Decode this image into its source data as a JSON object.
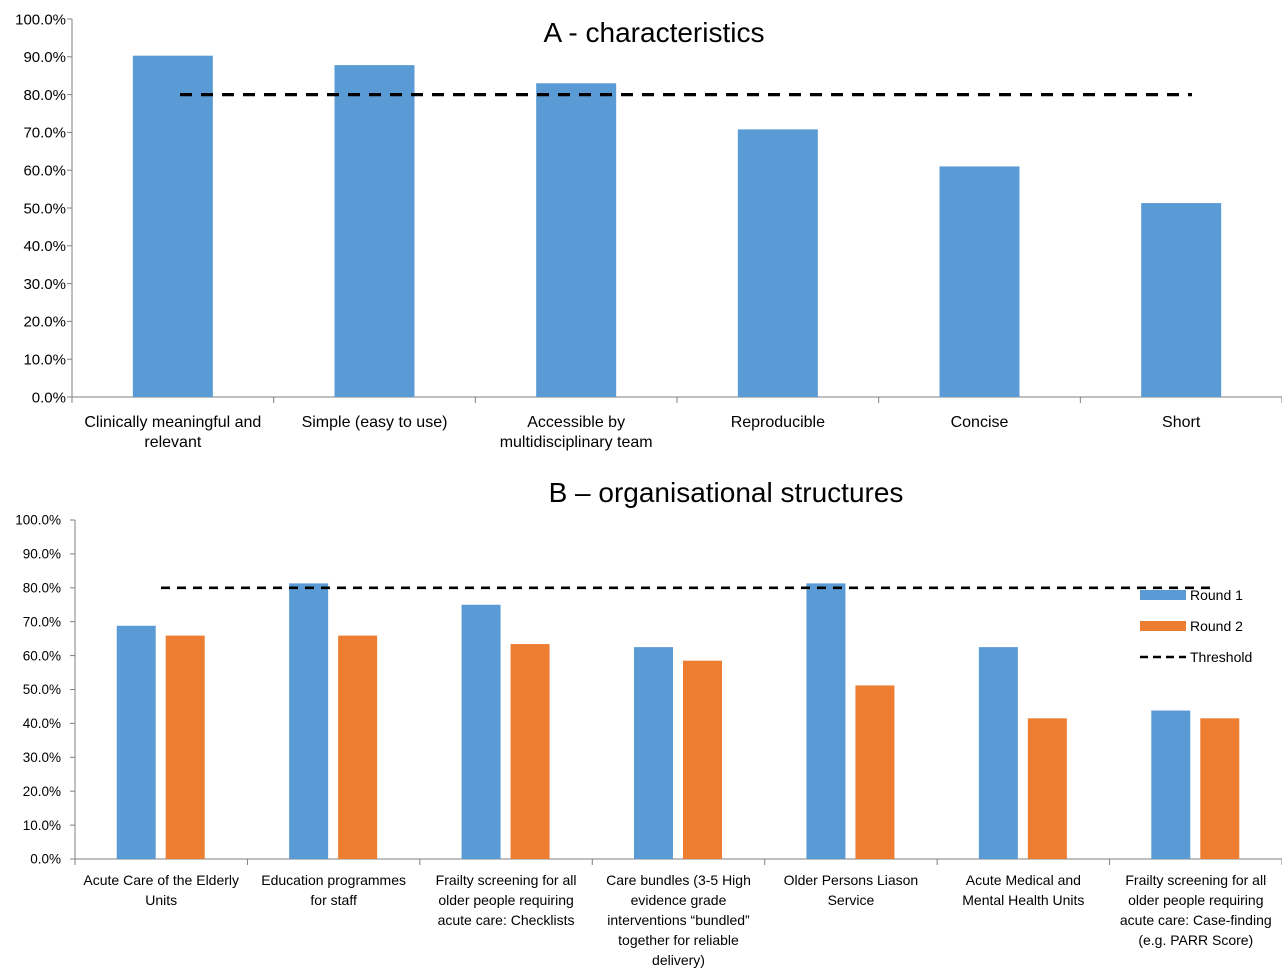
{
  "colors": {
    "round1": "#5B9BD5",
    "round2": "#ED7D31",
    "threshold": "#000000",
    "axis": "#7f7f7f"
  },
  "chart_data": [
    {
      "type": "bar",
      "title": "A - characteristics",
      "categories": [
        [
          "Clinically meaningful and",
          "relevant"
        ],
        [
          "Simple (easy to use)"
        ],
        [
          "Accessible by",
          "multidisciplinary team"
        ],
        [
          "Reproducible"
        ],
        [
          "Concise"
        ],
        [
          "Short"
        ]
      ],
      "series": [
        {
          "values": [
            90.3,
            87.8,
            83.0,
            70.8,
            61.0,
            51.3
          ]
        }
      ],
      "threshold": 80,
      "ylim": [
        0,
        100
      ],
      "yticks": [
        "0.0%",
        "10.0%",
        "20.0%",
        "30.0%",
        "40.0%",
        "50.0%",
        "60.0%",
        "70.0%",
        "80.0%",
        "90.0%",
        "100.0%"
      ],
      "grid": false,
      "legend": "none"
    },
    {
      "type": "bar",
      "title": "B – organisational structures",
      "categories": [
        [
          "Acute Care of the Elderly",
          "Units"
        ],
        [
          "Education programmes",
          "for staff"
        ],
        [
          "Frailty screening for all",
          "older people requiring",
          "acute care: Checklists"
        ],
        [
          "Care bundles (3-5 High",
          "evidence grade",
          "interventions “bundled”",
          "together for reliable",
          "delivery)"
        ],
        [
          "Older Persons Liason",
          "Service"
        ],
        [
          "Acute Medical and",
          "Mental Health Units"
        ],
        [
          "Frailty screening for all",
          "older people requiring",
          "acute care: Case-finding",
          "(e.g. PARR Score)"
        ]
      ],
      "series": [
        {
          "name": "Round 1",
          "values": [
            68.8,
            81.3,
            75.0,
            62.5,
            81.3,
            62.5,
            43.8
          ]
        },
        {
          "name": "Round 2",
          "values": [
            65.9,
            65.9,
            63.4,
            58.5,
            51.2,
            41.5,
            41.5
          ]
        }
      ],
      "threshold": 80,
      "threshold_label": "Threshold",
      "ylim": [
        0,
        100
      ],
      "yticks": [
        "0.0%",
        "10.0%",
        "20.0%",
        "30.0%",
        "40.0%",
        "50.0%",
        "60.0%",
        "70.0%",
        "80.0%",
        "90.0%",
        "100.0%"
      ],
      "grid": false,
      "legend": "right"
    }
  ]
}
